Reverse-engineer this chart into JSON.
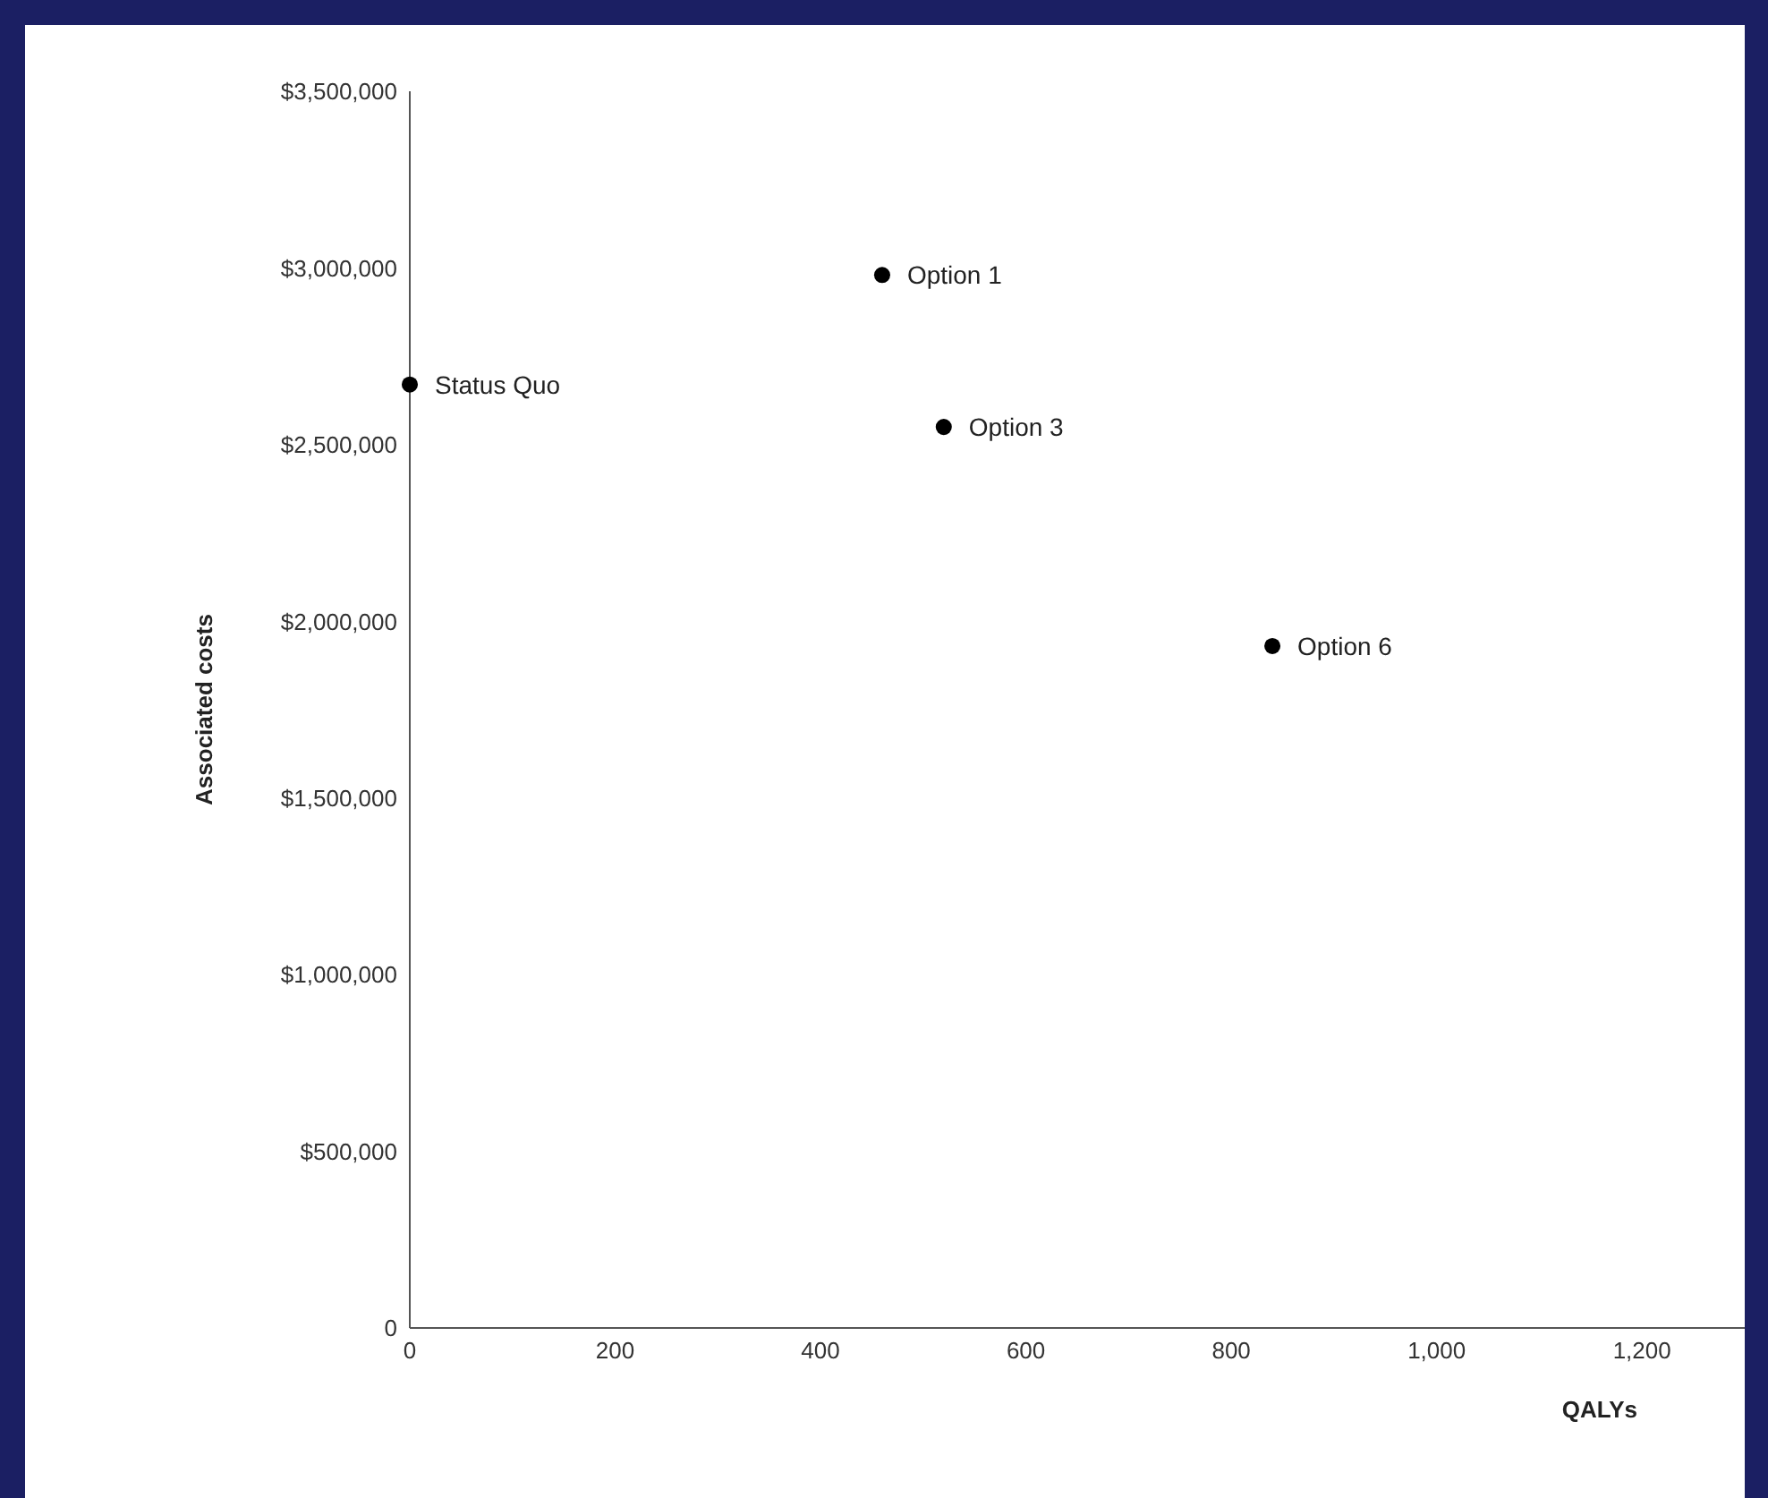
{
  "chart_data": {
    "type": "scatter",
    "xlabel": "QALYs",
    "ylabel": "Associated costs",
    "xlim": [
      0,
      1300
    ],
    "xticks": [
      0,
      200,
      400,
      600,
      800,
      {
        "value": 1000,
        "label": "1,000"
      },
      {
        "value": 1200,
        "label": "1,200"
      }
    ],
    "ylim": [
      0,
      3500000
    ],
    "yticks": [
      0,
      {
        "value": 500000,
        "label": "$500,000"
      },
      {
        "value": 1000000,
        "label": "$1,000,000"
      },
      {
        "value": 1500000,
        "label": "$1,500,000"
      },
      {
        "value": 2000000,
        "label": "$2,000,000"
      },
      {
        "value": 2500000,
        "label": "$2,500,000"
      },
      {
        "value": 3000000,
        "label": "$3,000,000"
      },
      {
        "value": 3500000,
        "label": "$3,500,000"
      }
    ],
    "series": [
      {
        "color": "#000000",
        "x": [
          0,
          460,
          520,
          840
        ],
        "values": [
          2670000,
          2980000,
          2550000,
          1930000
        ]
      }
    ],
    "annotations": [
      {
        "text": "Status Quo",
        "x": 0,
        "y": 2670000
      },
      {
        "text": "Option 1",
        "x": 460,
        "y": 2980000
      },
      {
        "text": "Option 3",
        "x": 520,
        "y": 2550000
      },
      {
        "text": "Option 6",
        "x": 840,
        "y": 1930000
      }
    ],
    "marker": "circle",
    "grid": false
  }
}
